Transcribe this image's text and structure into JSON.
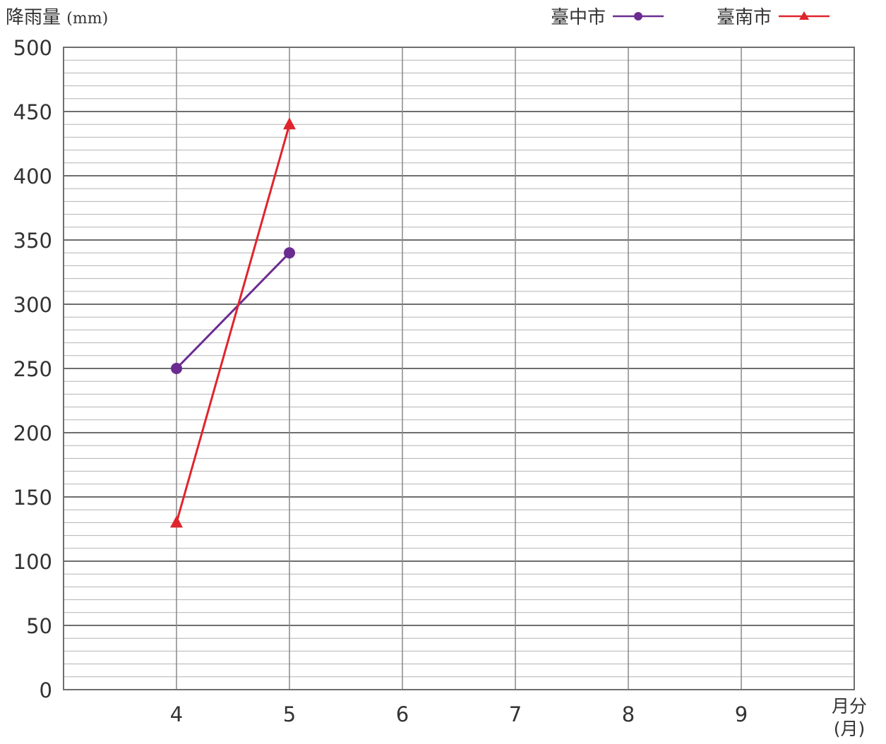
{
  "chart_data": {
    "type": "line",
    "ylabel": "降雨量",
    "ylabel_unit": "(mm)",
    "xlabel": "月分",
    "xlabel_unit": "(月)",
    "categories": [
      "4",
      "5",
      "6",
      "7",
      "8",
      "9"
    ],
    "y_ticks": [
      "0",
      "50",
      "100",
      "150",
      "200",
      "250",
      "300",
      "350",
      "400",
      "450",
      "500"
    ],
    "ylim": [
      0,
      500
    ],
    "grid": true,
    "legend_position": "top-right",
    "series": [
      {
        "name": "臺中市",
        "marker": "circle",
        "color": "#6a2c91",
        "values": [
          250,
          340,
          null,
          null,
          null,
          null
        ]
      },
      {
        "name": "臺南市",
        "marker": "triangle",
        "color": "#e0242c",
        "values": [
          130,
          440,
          null,
          null,
          null,
          null
        ]
      }
    ]
  }
}
